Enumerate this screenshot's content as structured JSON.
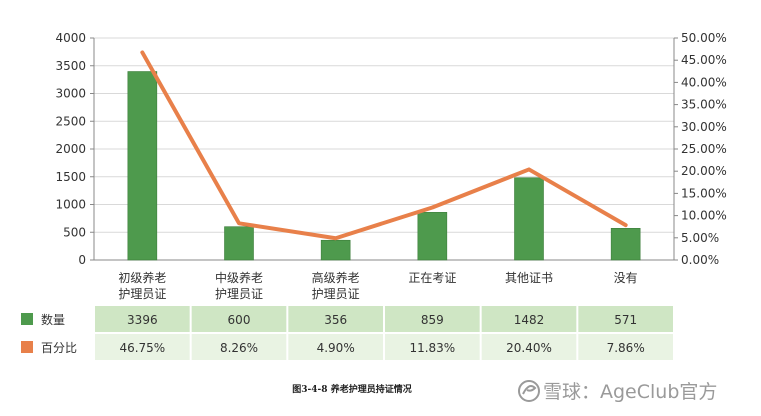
{
  "chart_data": {
    "type": "bar",
    "categories": [
      [
        "初级养老",
        "护理员证"
      ],
      [
        "中级养老",
        "护理员证"
      ],
      [
        "高级养老",
        "护理员证"
      ],
      [
        "正在考证"
      ],
      [
        "其他证书"
      ],
      [
        "没有"
      ]
    ],
    "series": [
      {
        "name": "数量",
        "type": "bar",
        "axis": "left",
        "color": "#4e9a4d",
        "values": [
          3396,
          600,
          356,
          859,
          1482,
          571
        ],
        "labels": [
          "3396",
          "600",
          "356",
          "859",
          "1482",
          "571"
        ]
      },
      {
        "name": "百分比",
        "type": "line",
        "axis": "right",
        "color": "#e8804a",
        "values": [
          46.75,
          8.26,
          4.9,
          11.83,
          20.4,
          7.86
        ],
        "labels": [
          "46.75%",
          "8.26%",
          "4.90%",
          "11.83%",
          "20.40%",
          "7.86%"
        ]
      }
    ],
    "y_left": {
      "lim": [
        0,
        4000
      ],
      "ticks": [
        0,
        500,
        1000,
        1500,
        2000,
        2500,
        3000,
        3500,
        4000
      ],
      "tick_labels": [
        "0",
        "500",
        "1000",
        "1500",
        "2000",
        "2500",
        "3000",
        "3500",
        "4000"
      ]
    },
    "y_right": {
      "lim": [
        0,
        50
      ],
      "ticks": [
        0,
        5,
        10,
        15,
        20,
        25,
        30,
        35,
        40,
        45,
        50
      ],
      "tick_labels": [
        "0.00%",
        "5.00%",
        "10.00%",
        "15.00%",
        "20.00%",
        "25.00%",
        "30.00%",
        "35.00%",
        "40.00%",
        "45.00%",
        "50.00%"
      ]
    },
    "grid": true,
    "data_table": true,
    "caption": "图3-4-8 养老护理员持证情况"
  },
  "watermark": {
    "text": "雪球：AgeClub官方"
  },
  "colors": {
    "grid": "#d9d9d9",
    "table_row1": "#cfe6c4",
    "table_row2": "#e9f3e3"
  }
}
